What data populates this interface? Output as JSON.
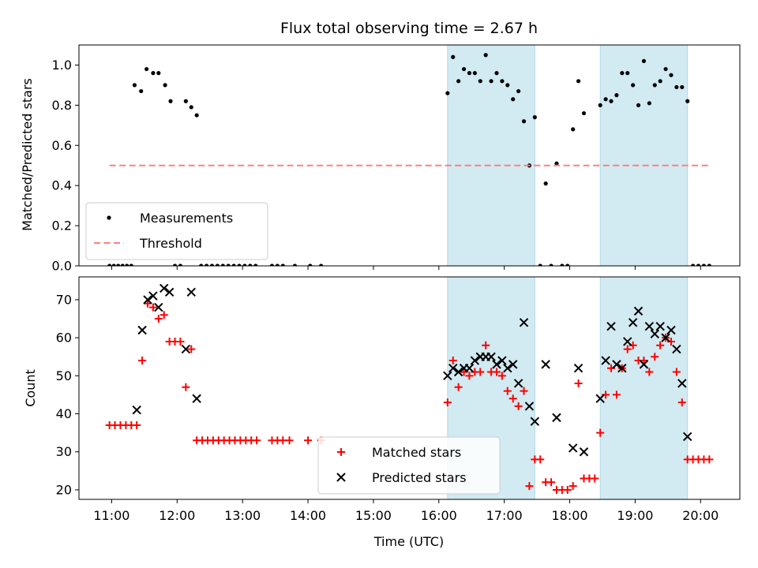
{
  "chart_data": [
    {
      "type": "scatter",
      "title": "Flux total observing time = 2.67 h",
      "xlabel": "",
      "ylabel": "Matched/Predicted stars",
      "xlim": [
        "10:30",
        "20:36"
      ],
      "ylim": [
        0,
        1.1
      ],
      "yticks": [
        "0.0",
        "0.2",
        "0.4",
        "0.6",
        "0.8",
        "1.0"
      ],
      "shaded_regions": [
        [
          "16:08",
          "17:28"
        ],
        [
          "18:28",
          "19:48"
        ]
      ],
      "shade_color": "#add8e6",
      "legend_placement": "lower-left",
      "series": [
        {
          "name": "Measurements",
          "marker": "dot",
          "color": "#000000",
          "points": [
            [
              "10:58",
              0
            ],
            [
              "11:02",
              0
            ],
            [
              "11:06",
              0
            ],
            [
              "11:10",
              0
            ],
            [
              "11:14",
              0
            ],
            [
              "11:18",
              0
            ],
            [
              "11:21",
              0.9
            ],
            [
              "11:27",
              0.87
            ],
            [
              "11:32",
              0.98
            ],
            [
              "11:38",
              0.96
            ],
            [
              "11:43",
              0.96
            ],
            [
              "11:49",
              0.9
            ],
            [
              "11:54",
              0.82
            ],
            [
              "11:58",
              0
            ],
            [
              "12:03",
              0
            ],
            [
              "12:08",
              0.82
            ],
            [
              "12:13",
              0.79
            ],
            [
              "12:18",
              0.75
            ],
            [
              "12:22",
              0
            ],
            [
              "12:27",
              0
            ],
            [
              "12:32",
              0
            ],
            [
              "12:37",
              0
            ],
            [
              "12:42",
              0
            ],
            [
              "12:47",
              0
            ],
            [
              "12:52",
              0
            ],
            [
              "12:57",
              0
            ],
            [
              "13:02",
              0
            ],
            [
              "13:07",
              0
            ],
            [
              "13:12",
              0
            ],
            [
              "13:27",
              0
            ],
            [
              "13:32",
              0
            ],
            [
              "13:37",
              0
            ],
            [
              "13:48",
              0
            ],
            [
              "14:02",
              0
            ],
            [
              "14:12",
              0
            ],
            [
              "16:08",
              0.86
            ],
            [
              "16:13",
              1.04
            ],
            [
              "16:18",
              0.92
            ],
            [
              "16:23",
              0.98
            ],
            [
              "16:28",
              0.96
            ],
            [
              "16:33",
              0.96
            ],
            [
              "16:38",
              0.92
            ],
            [
              "16:43",
              1.05
            ],
            [
              "16:48",
              0.92
            ],
            [
              "16:53",
              0.96
            ],
            [
              "16:58",
              0.92
            ],
            [
              "17:03",
              0.9
            ],
            [
              "17:08",
              0.83
            ],
            [
              "17:13",
              0.87
            ],
            [
              "17:18",
              0.72
            ],
            [
              "17:23",
              0.5
            ],
            [
              "17:28",
              0.74
            ],
            [
              "17:33",
              0
            ],
            [
              "17:38",
              0.41
            ],
            [
              "17:43",
              0
            ],
            [
              "17:48",
              0.51
            ],
            [
              "17:53",
              0
            ],
            [
              "17:58",
              0
            ],
            [
              "18:03",
              0.68
            ],
            [
              "18:08",
              0.92
            ],
            [
              "18:13",
              0.76
            ],
            [
              "18:28",
              0.8
            ],
            [
              "18:33",
              0.83
            ],
            [
              "18:38",
              0.82
            ],
            [
              "18:43",
              0.85
            ],
            [
              "18:48",
              0.96
            ],
            [
              "18:53",
              0.96
            ],
            [
              "18:58",
              0.9
            ],
            [
              "19:03",
              0.8
            ],
            [
              "19:08",
              1.02
            ],
            [
              "19:13",
              0.81
            ],
            [
              "19:18",
              0.9
            ],
            [
              "19:23",
              0.92
            ],
            [
              "19:28",
              0.98
            ],
            [
              "19:33",
              0.95
            ],
            [
              "19:38",
              0.89
            ],
            [
              "19:43",
              0.89
            ],
            [
              "19:48",
              0.82
            ],
            [
              "19:53",
              0
            ],
            [
              "19:58",
              0
            ],
            [
              "20:03",
              0
            ],
            [
              "20:08",
              0
            ]
          ]
        },
        {
          "name": "Threshold",
          "marker": "dashed-line",
          "color": "#ff7f7f",
          "points": [
            [
              "10:58",
              0.5
            ],
            [
              "20:08",
              0.5
            ]
          ]
        }
      ]
    },
    {
      "type": "scatter",
      "title": "",
      "xlabel": "Time (UTC)",
      "ylabel": "Count",
      "xlim": [
        "10:30",
        "20:36"
      ],
      "ylim": [
        17.5,
        76
      ],
      "yticks": [
        "20",
        "30",
        "40",
        "50",
        "60",
        "70"
      ],
      "xticks": [
        "11:00",
        "12:00",
        "13:00",
        "14:00",
        "15:00",
        "16:00",
        "17:00",
        "18:00",
        "19:00",
        "20:00"
      ],
      "shaded_regions": [
        [
          "16:08",
          "17:28"
        ],
        [
          "18:28",
          "19:48"
        ]
      ],
      "shade_color": "#add8e6",
      "legend_placement": "lower-center",
      "series": [
        {
          "name": "Matched stars",
          "marker": "plus",
          "color": "#ff0000",
          "points": [
            [
              "10:58",
              37
            ],
            [
              "11:03",
              37
            ],
            [
              "11:08",
              37
            ],
            [
              "11:13",
              37
            ],
            [
              "11:18",
              37
            ],
            [
              "11:23",
              37
            ],
            [
              "11:28",
              54
            ],
            [
              "11:33",
              69
            ],
            [
              "11:38",
              68
            ],
            [
              "11:43",
              65
            ],
            [
              "11:48",
              66
            ],
            [
              "11:53",
              59
            ],
            [
              "11:58",
              59
            ],
            [
              "12:03",
              59
            ],
            [
              "12:08",
              47
            ],
            [
              "12:13",
              57
            ],
            [
              "12:18",
              33
            ],
            [
              "12:23",
              33
            ],
            [
              "12:28",
              33
            ],
            [
              "12:33",
              33
            ],
            [
              "12:38",
              33
            ],
            [
              "12:43",
              33
            ],
            [
              "12:48",
              33
            ],
            [
              "12:53",
              33
            ],
            [
              "12:58",
              33
            ],
            [
              "13:03",
              33
            ],
            [
              "13:08",
              33
            ],
            [
              "13:13",
              33
            ],
            [
              "13:27",
              33
            ],
            [
              "13:32",
              33
            ],
            [
              "13:37",
              33
            ],
            [
              "13:43",
              33
            ],
            [
              "14:00",
              33
            ],
            [
              "14:12",
              33
            ],
            [
              "16:08",
              43
            ],
            [
              "16:13",
              54
            ],
            [
              "16:18",
              47
            ],
            [
              "16:23",
              51
            ],
            [
              "16:28",
              50
            ],
            [
              "16:33",
              51
            ],
            [
              "16:38",
              51
            ],
            [
              "16:43",
              58
            ],
            [
              "16:48",
              51
            ],
            [
              "16:53",
              51
            ],
            [
              "16:58",
              50
            ],
            [
              "17:03",
              46
            ],
            [
              "17:08",
              44
            ],
            [
              "17:13",
              42
            ],
            [
              "17:18",
              46
            ],
            [
              "17:23",
              21
            ],
            [
              "17:28",
              28
            ],
            [
              "17:33",
              28
            ],
            [
              "17:38",
              22
            ],
            [
              "17:43",
              22
            ],
            [
              "17:48",
              20
            ],
            [
              "17:53",
              20
            ],
            [
              "17:58",
              20
            ],
            [
              "18:03",
              21
            ],
            [
              "18:08",
              48
            ],
            [
              "18:13",
              23
            ],
            [
              "18:18",
              23
            ],
            [
              "18:23",
              23
            ],
            [
              "18:28",
              35
            ],
            [
              "18:33",
              45
            ],
            [
              "18:38",
              52
            ],
            [
              "18:43",
              45
            ],
            [
              "18:48",
              52
            ],
            [
              "18:53",
              57
            ],
            [
              "18:58",
              58
            ],
            [
              "19:03",
              54
            ],
            [
              "19:08",
              54
            ],
            [
              "19:13",
              51
            ],
            [
              "19:18",
              55
            ],
            [
              "19:23",
              58
            ],
            [
              "19:28",
              60
            ],
            [
              "19:33",
              59
            ],
            [
              "19:38",
              51
            ],
            [
              "19:43",
              43
            ],
            [
              "19:48",
              28
            ],
            [
              "19:53",
              28
            ],
            [
              "19:58",
              28
            ],
            [
              "20:03",
              28
            ],
            [
              "20:08",
              28
            ]
          ]
        },
        {
          "name": "Predicted stars",
          "marker": "x",
          "color": "#000000",
          "points": [
            [
              "11:23",
              41
            ],
            [
              "11:28",
              62
            ],
            [
              "11:33",
              70
            ],
            [
              "11:38",
              71
            ],
            [
              "11:43",
              68
            ],
            [
              "11:48",
              73
            ],
            [
              "11:53",
              72
            ],
            [
              "12:08",
              57
            ],
            [
              "12:13",
              72
            ],
            [
              "12:18",
              44
            ],
            [
              "16:08",
              50
            ],
            [
              "16:13",
              52
            ],
            [
              "16:18",
              51
            ],
            [
              "16:23",
              52
            ],
            [
              "16:28",
              52
            ],
            [
              "16:33",
              54
            ],
            [
              "16:38",
              55
            ],
            [
              "16:43",
              55
            ],
            [
              "16:48",
              55
            ],
            [
              "16:53",
              53
            ],
            [
              "16:58",
              54
            ],
            [
              "17:03",
              52
            ],
            [
              "17:08",
              53
            ],
            [
              "17:13",
              48
            ],
            [
              "17:18",
              64
            ],
            [
              "17:23",
              42
            ],
            [
              "17:28",
              38
            ],
            [
              "17:38",
              53
            ],
            [
              "17:48",
              39
            ],
            [
              "18:03",
              31
            ],
            [
              "18:08",
              52
            ],
            [
              "18:13",
              30
            ],
            [
              "18:28",
              44
            ],
            [
              "18:33",
              54
            ],
            [
              "18:38",
              63
            ],
            [
              "18:43",
              53
            ],
            [
              "18:48",
              52
            ],
            [
              "18:53",
              59
            ],
            [
              "18:58",
              64
            ],
            [
              "19:03",
              67
            ],
            [
              "19:08",
              53
            ],
            [
              "19:13",
              63
            ],
            [
              "19:18",
              61
            ],
            [
              "19:23",
              63
            ],
            [
              "19:28",
              60
            ],
            [
              "19:33",
              62
            ],
            [
              "19:38",
              57
            ],
            [
              "19:43",
              48
            ],
            [
              "19:48",
              34
            ]
          ]
        }
      ]
    }
  ]
}
